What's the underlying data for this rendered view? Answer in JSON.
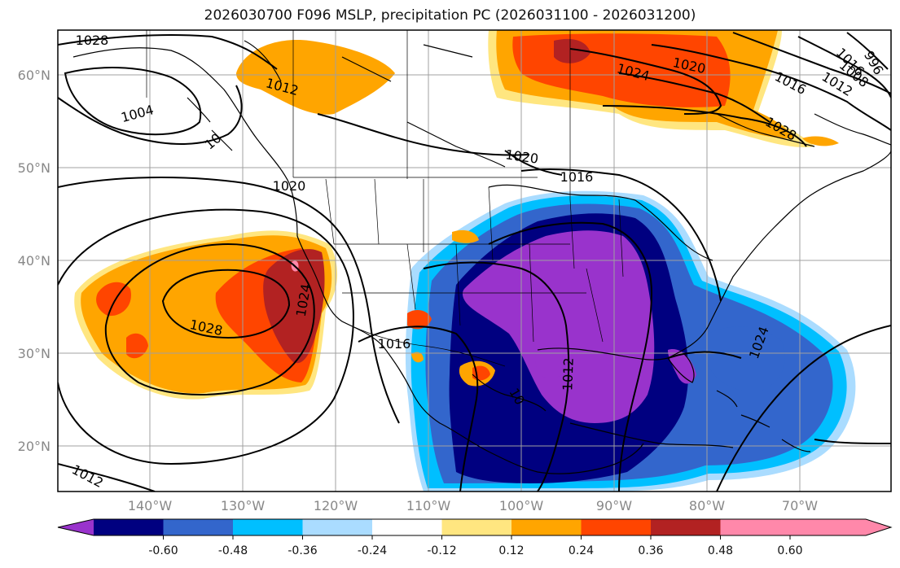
{
  "title": "2026030700 F096 MSLP, precipitation PC (2026031100 - 2026031200)",
  "latitude_labels": [
    "60°N",
    "50°N",
    "40°N",
    "30°N",
    "20°N"
  ],
  "longitude_labels": [
    "140°W",
    "130°W",
    "120°W",
    "110°W",
    "100°W",
    "90°W",
    "80°W",
    "70°W"
  ],
  "colorbar": {
    "colors": [
      "#9933cc",
      "#000080",
      "#3366cc",
      "#00bfff",
      "#aadcff",
      "#ffffff",
      "#ffe680",
      "#ffa500",
      "#ff4500",
      "#b22222",
      "#ff88aa"
    ],
    "ticks": [
      "-0.60",
      "-0.48",
      "-0.36",
      "-0.24",
      "-0.12",
      "0.12",
      "0.24",
      "0.36",
      "0.48",
      "0.60"
    ]
  },
  "isobars": [
    {
      "label": "1028"
    },
    {
      "label": "1012"
    },
    {
      "label": "1004"
    },
    {
      "label": "10"
    },
    {
      "label": "1020"
    },
    {
      "label": "1024"
    },
    {
      "label": "1028"
    },
    {
      "label": "1016"
    },
    {
      "label": "1012"
    },
    {
      "label": "10"
    },
    {
      "label": "1012"
    },
    {
      "label": "1024"
    },
    {
      "label": "1020"
    },
    {
      "label": "1024"
    },
    {
      "label": "1020"
    },
    {
      "label": "1016"
    },
    {
      "label": "1028"
    },
    {
      "label": "1016"
    },
    {
      "label": "1012"
    },
    {
      "label": "1008"
    },
    {
      "label": "996"
    },
    {
      "label": "1016"
    }
  ]
}
